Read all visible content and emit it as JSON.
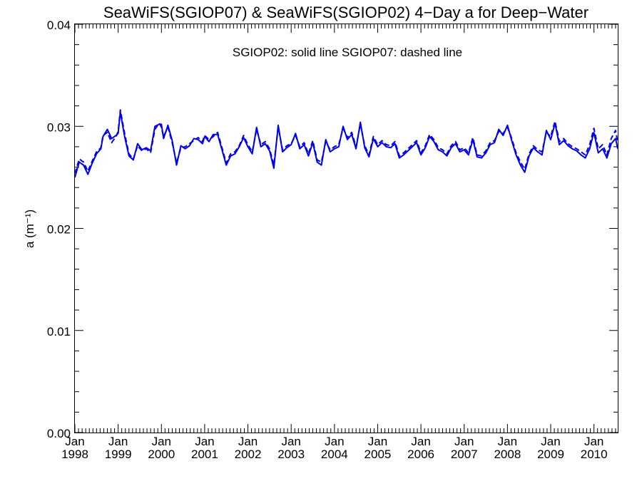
{
  "chart_data": {
    "type": "line",
    "title": "SeaWiFS(SGIOP07) & SeaWiFS(SGIOP02) 4−Day a for Deep−Water",
    "legend_text": "SGIOP02: solid line   SGIOP07: dashed line",
    "ylabel": "a (m⁻¹)",
    "xlabel": "",
    "xlim": [
      1998.0,
      2010.55
    ],
    "ylim": [
      0.0,
      0.04
    ],
    "yticks": [
      "0.00",
      "0.01",
      "0.02",
      "0.03",
      "0.04"
    ],
    "yticks_values": [
      0.0,
      0.01,
      0.02,
      0.03,
      0.04
    ],
    "xticks": [
      {
        "month": "Jan",
        "year": "1998",
        "value": 1998
      },
      {
        "month": "Jan",
        "year": "1999",
        "value": 1999
      },
      {
        "month": "Jan",
        "year": "2000",
        "value": 2000
      },
      {
        "month": "Jan",
        "year": "2001",
        "value": 2001
      },
      {
        "month": "Jan",
        "year": "2002",
        "value": 2002
      },
      {
        "month": "Jan",
        "year": "2003",
        "value": 2003
      },
      {
        "month": "Jan",
        "year": "2004",
        "value": 2004
      },
      {
        "month": "Jan",
        "year": "2005",
        "value": 2005
      },
      {
        "month": "Jan",
        "year": "2006",
        "value": 2006
      },
      {
        "month": "Jan",
        "year": "2007",
        "value": 2007
      },
      {
        "month": "Jan",
        "year": "2008",
        "value": 2008
      },
      {
        "month": "Jan",
        "year": "2009",
        "value": 2009
      },
      {
        "month": "Jan",
        "year": "2010",
        "value": 2010
      }
    ],
    "color": "#0000ee",
    "grid": false,
    "series": [
      {
        "name": "SGIOP02",
        "style": "solid",
        "x": [
          1998.0,
          1998.1,
          1998.2,
          1998.3,
          1998.4,
          1998.5,
          1998.6,
          1998.65,
          1998.75,
          1998.85,
          1998.95,
          1999.0,
          1999.05,
          1999.15,
          1999.25,
          1999.35,
          1999.45,
          1999.55,
          1999.65,
          1999.75,
          1999.85,
          1999.95,
          2000.0,
          2000.05,
          2000.15,
          2000.25,
          2000.35,
          2000.45,
          2000.55,
          2000.65,
          2000.75,
          2000.85,
          2000.95,
          2001.0,
          2001.1,
          2001.2,
          2001.3,
          2001.4,
          2001.5,
          2001.6,
          2001.7,
          2001.8,
          2001.9,
          2002.0,
          2002.1,
          2002.2,
          2002.3,
          2002.4,
          2002.5,
          2002.6,
          2002.7,
          2002.8,
          2002.9,
          2003.0,
          2003.1,
          2003.2,
          2003.3,
          2003.4,
          2003.5,
          2003.6,
          2003.7,
          2003.8,
          2003.9,
          2004.0,
          2004.1,
          2004.2,
          2004.3,
          2004.4,
          2004.5,
          2004.6,
          2004.7,
          2004.8,
          2004.9,
          2005.0,
          2005.1,
          2005.2,
          2005.3,
          2005.4,
          2005.5,
          2005.6,
          2005.7,
          2005.8,
          2005.9,
          2006.0,
          2006.1,
          2006.2,
          2006.3,
          2006.4,
          2006.5,
          2006.6,
          2006.7,
          2006.8,
          2006.9,
          2007.0,
          2007.1,
          2007.2,
          2007.3,
          2007.4,
          2007.5,
          2007.6,
          2007.7,
          2007.8,
          2007.9,
          2008.0,
          2008.1,
          2008.2,
          2008.3,
          2008.4,
          2008.5,
          2008.6,
          2008.7,
          2008.8,
          2008.9,
          2009.0,
          2009.1,
          2009.2,
          2009.3,
          2009.4,
          2009.5,
          2009.6,
          2009.7,
          2009.8,
          2009.9,
          2010.0,
          2010.1,
          2010.2,
          2010.3,
          2010.4,
          2010.5,
          2010.55
        ],
        "values": [
          0.025,
          0.0265,
          0.0262,
          0.0253,
          0.0264,
          0.0273,
          0.0278,
          0.029,
          0.0297,
          0.0288,
          0.0291,
          0.0293,
          0.0314,
          0.029,
          0.0271,
          0.0267,
          0.0283,
          0.0277,
          0.0279,
          0.0276,
          0.03,
          0.0302,
          0.0302,
          0.0288,
          0.0301,
          0.0286,
          0.0262,
          0.0281,
          0.0278,
          0.0281,
          0.0288,
          0.0287,
          0.0283,
          0.029,
          0.0285,
          0.0292,
          0.0292,
          0.0277,
          0.0262,
          0.0271,
          0.0273,
          0.028,
          0.0289,
          0.028,
          0.0273,
          0.0299,
          0.028,
          0.0283,
          0.0276,
          0.0259,
          0.0301,
          0.0275,
          0.0279,
          0.0282,
          0.0293,
          0.0278,
          0.0282,
          0.0271,
          0.0284,
          0.0265,
          0.0262,
          0.0287,
          0.0275,
          0.0278,
          0.028,
          0.03,
          0.0287,
          0.0292,
          0.0278,
          0.0304,
          0.0279,
          0.027,
          0.0288,
          0.028,
          0.0284,
          0.028,
          0.0279,
          0.0283,
          0.0269,
          0.0272,
          0.0276,
          0.028,
          0.0284,
          0.0272,
          0.0279,
          0.029,
          0.0285,
          0.0277,
          0.0275,
          0.0271,
          0.0279,
          0.0283,
          0.0275,
          0.0277,
          0.0272,
          0.0287,
          0.027,
          0.0269,
          0.0274,
          0.0282,
          0.0284,
          0.0297,
          0.0291,
          0.0301,
          0.0286,
          0.0272,
          0.0262,
          0.0255,
          0.0271,
          0.0279,
          0.0275,
          0.0272,
          0.0296,
          0.0287,
          0.0303,
          0.0282,
          0.0286,
          0.0281,
          0.0278,
          0.0276,
          0.0272,
          0.0269,
          0.0278,
          0.0294,
          0.0274,
          0.0278,
          0.0269,
          0.0283,
          0.0288,
          0.0278
        ]
      },
      {
        "name": "SGIOP07",
        "style": "dashed",
        "x": [
          1998.0,
          1998.1,
          1998.2,
          1998.3,
          1998.4,
          1998.5,
          1998.6,
          1998.65,
          1998.75,
          1998.85,
          1998.95,
          1999.0,
          1999.05,
          1999.15,
          1999.25,
          1999.35,
          1999.45,
          1999.55,
          1999.65,
          1999.75,
          1999.85,
          1999.95,
          2000.0,
          2000.05,
          2000.15,
          2000.25,
          2000.35,
          2000.45,
          2000.55,
          2000.65,
          2000.75,
          2000.85,
          2000.95,
          2001.0,
          2001.1,
          2001.2,
          2001.3,
          2001.4,
          2001.5,
          2001.6,
          2001.7,
          2001.8,
          2001.9,
          2002.0,
          2002.1,
          2002.2,
          2002.3,
          2002.4,
          2002.5,
          2002.6,
          2002.7,
          2002.8,
          2002.9,
          2003.0,
          2003.1,
          2003.2,
          2003.3,
          2003.4,
          2003.5,
          2003.6,
          2003.7,
          2003.8,
          2003.9,
          2004.0,
          2004.1,
          2004.2,
          2004.3,
          2004.4,
          2004.5,
          2004.6,
          2004.7,
          2004.8,
          2004.9,
          2005.0,
          2005.1,
          2005.2,
          2005.3,
          2005.4,
          2005.5,
          2005.6,
          2005.7,
          2005.8,
          2005.9,
          2006.0,
          2006.1,
          2006.2,
          2006.3,
          2006.4,
          2006.5,
          2006.6,
          2006.7,
          2006.8,
          2006.9,
          2007.0,
          2007.1,
          2007.2,
          2007.3,
          2007.4,
          2007.5,
          2007.6,
          2007.7,
          2007.8,
          2007.9,
          2008.0,
          2008.1,
          2008.2,
          2008.3,
          2008.4,
          2008.5,
          2008.6,
          2008.7,
          2008.8,
          2008.9,
          2009.0,
          2009.1,
          2009.2,
          2009.3,
          2009.4,
          2009.5,
          2009.6,
          2009.7,
          2009.8,
          2009.9,
          2010.0,
          2010.1,
          2010.2,
          2010.3,
          2010.4,
          2010.5,
          2010.55
        ],
        "values": [
          0.0254,
          0.0268,
          0.0265,
          0.0256,
          0.0266,
          0.0275,
          0.0279,
          0.0291,
          0.0294,
          0.0284,
          0.029,
          0.0295,
          0.0316,
          0.0293,
          0.0273,
          0.0268,
          0.0281,
          0.0276,
          0.0278,
          0.0274,
          0.0297,
          0.0303,
          0.0299,
          0.029,
          0.0299,
          0.0284,
          0.0264,
          0.0279,
          0.028,
          0.0283,
          0.0286,
          0.0289,
          0.0285,
          0.0291,
          0.0287,
          0.029,
          0.0294,
          0.0279,
          0.0264,
          0.0273,
          0.0275,
          0.0281,
          0.0291,
          0.0282,
          0.0275,
          0.0297,
          0.0282,
          0.0285,
          0.0278,
          0.0262,
          0.0299,
          0.0277,
          0.0281,
          0.0283,
          0.0291,
          0.028,
          0.0284,
          0.0273,
          0.0286,
          0.0267,
          0.0265,
          0.0285,
          0.0277,
          0.028,
          0.0282,
          0.0298,
          0.0289,
          0.0294,
          0.028,
          0.0302,
          0.0281,
          0.0272,
          0.029,
          0.0282,
          0.0286,
          0.0282,
          0.0281,
          0.0285,
          0.0271,
          0.0274,
          0.0278,
          0.0282,
          0.0286,
          0.0274,
          0.0281,
          0.0292,
          0.0287,
          0.0279,
          0.0277,
          0.0273,
          0.0281,
          0.0285,
          0.0277,
          0.0279,
          0.0274,
          0.0289,
          0.0272,
          0.0271,
          0.0276,
          0.0284,
          0.0286,
          0.0295,
          0.0293,
          0.0299,
          0.0288,
          0.0274,
          0.0265,
          0.0258,
          0.0273,
          0.0281,
          0.0277,
          0.0275,
          0.0294,
          0.029,
          0.0305,
          0.0285,
          0.0288,
          0.0283,
          0.028,
          0.0278,
          0.0275,
          0.0272,
          0.0282,
          0.0298,
          0.0278,
          0.0282,
          0.0272,
          0.0288,
          0.0296,
          0.0284
        ]
      }
    ]
  }
}
